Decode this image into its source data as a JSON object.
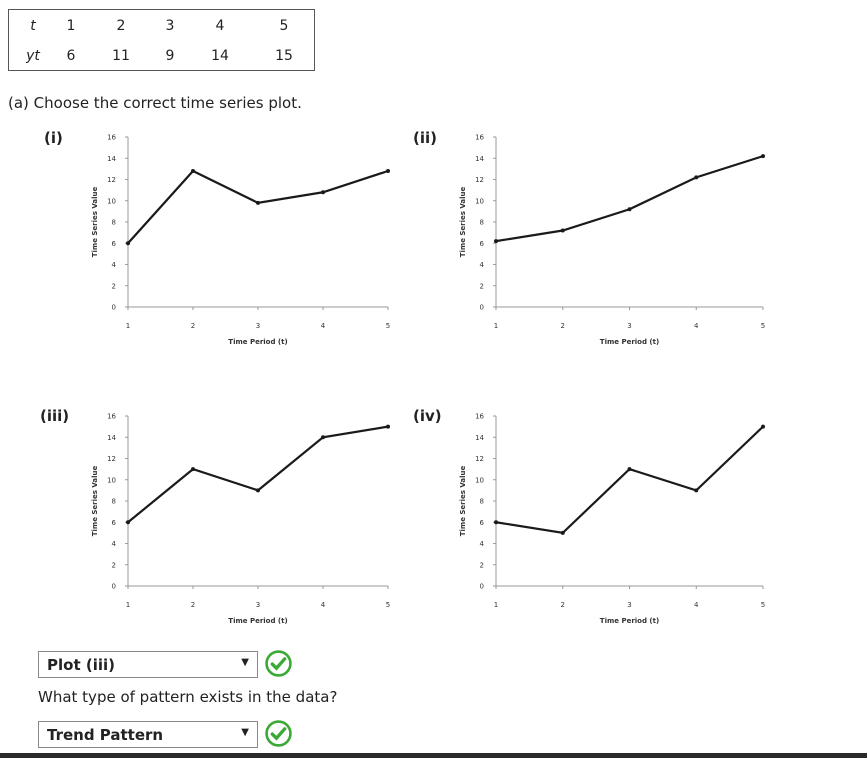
{
  "table": {
    "row_labels": [
      "t",
      "yt"
    ],
    "t": [
      "1",
      "2",
      "3",
      "4",
      "5"
    ],
    "yt": [
      "6",
      "11",
      "9",
      "14",
      "15"
    ]
  },
  "question_a": "(a) Choose the correct time series plot.",
  "plot_labels": [
    "(i)",
    "(ii)",
    "(iii)",
    "(iv)"
  ],
  "answer1": {
    "selected": "Plot (iii)",
    "status": "correct"
  },
  "question_b": "What type of pattern exists in the data?",
  "answer2": {
    "selected": "Trend Pattern",
    "status": "correct"
  },
  "colors": {
    "check": "#3aa935",
    "line": "#1a1a1a"
  },
  "chart_data": [
    {
      "type": "line",
      "label": "(i)",
      "x": [
        1,
        2,
        3,
        4,
        5
      ],
      "y": [
        6,
        12.8,
        9.8,
        10.8,
        12.8
      ],
      "xlabel": "Time Period (t)",
      "ylabel": "Time Series Value",
      "ylim": [
        0,
        16
      ],
      "yticks": [
        "0",
        "2",
        "4",
        "6",
        "8",
        "10",
        "12",
        "14",
        "16"
      ],
      "xticks": [
        "1",
        "2",
        "3",
        "4",
        "5"
      ],
      "grid": false
    },
    {
      "type": "line",
      "label": "(ii)",
      "x": [
        1,
        2,
        3,
        4,
        5
      ],
      "y": [
        6.2,
        7.2,
        9.2,
        12.2,
        14.2
      ],
      "xlabel": "Time Period (t)",
      "ylabel": "Time Series Value",
      "ylim": [
        0,
        16
      ],
      "yticks": [
        "0",
        "2",
        "4",
        "6",
        "8",
        "10",
        "12",
        "14",
        "16"
      ],
      "xticks": [
        "1",
        "2",
        "3",
        "4",
        "5"
      ],
      "grid": false
    },
    {
      "type": "line",
      "label": "(iii)",
      "x": [
        1,
        2,
        3,
        4,
        5
      ],
      "y": [
        6,
        11,
        9,
        14,
        15
      ],
      "xlabel": "Time Period (t)",
      "ylabel": "Time Series Value",
      "ylim": [
        0,
        16
      ],
      "yticks": [
        "0",
        "2",
        "4",
        "6",
        "8",
        "10",
        "12",
        "14",
        "16"
      ],
      "xticks": [
        "1",
        "2",
        "3",
        "4",
        "5"
      ],
      "grid": false
    },
    {
      "type": "line",
      "label": "(iv)",
      "x": [
        1,
        2,
        3,
        4,
        5
      ],
      "y": [
        6,
        5,
        11,
        9,
        15
      ],
      "xlabel": "Time Period (t)",
      "ylabel": "Time Series Value",
      "ylim": [
        0,
        16
      ],
      "yticks": [
        "0",
        "2",
        "4",
        "6",
        "8",
        "10",
        "12",
        "14",
        "16"
      ],
      "xticks": [
        "1",
        "2",
        "3",
        "4",
        "5"
      ],
      "grid": false
    }
  ]
}
